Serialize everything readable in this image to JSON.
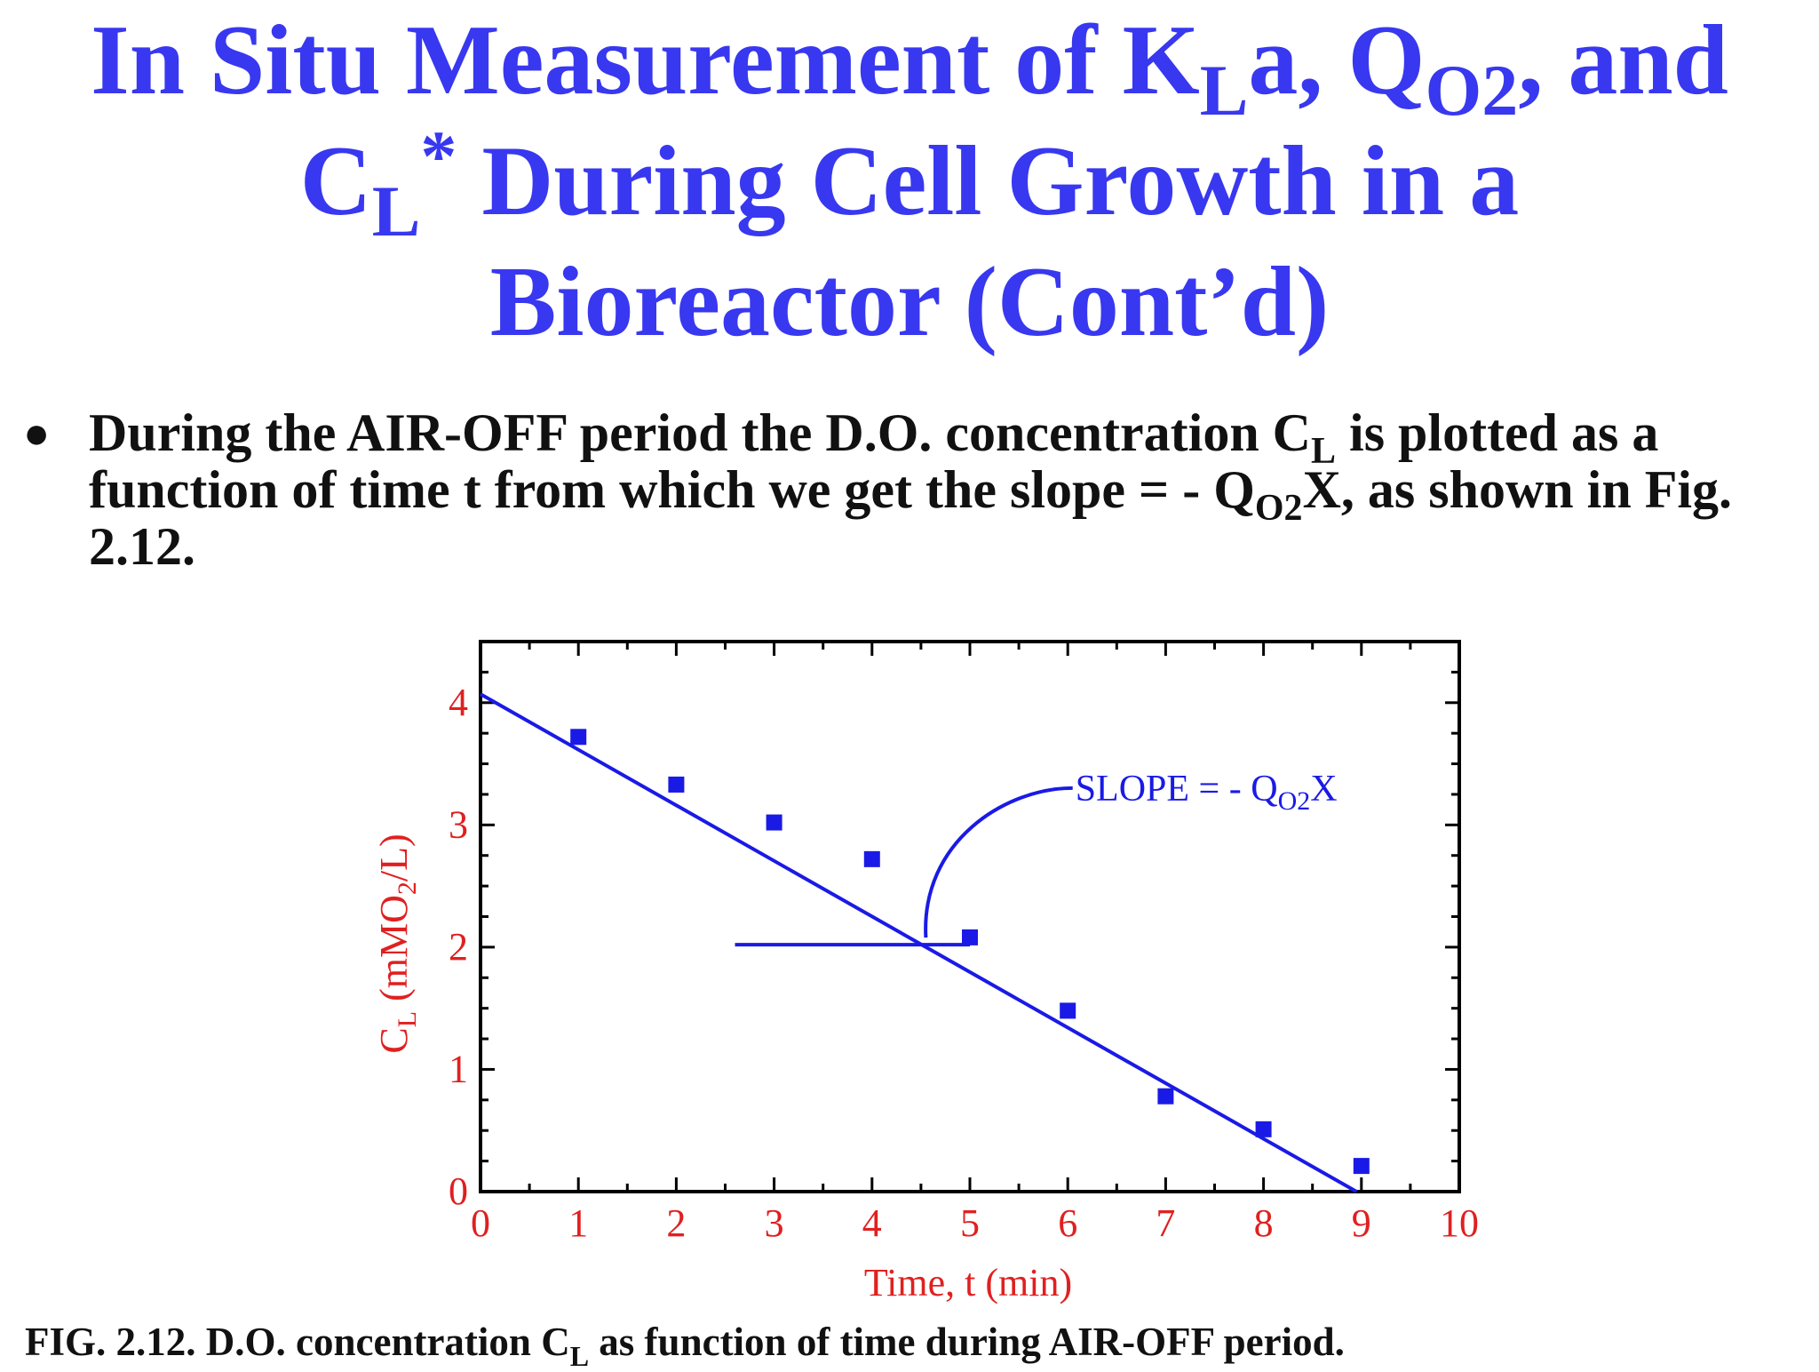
{
  "title": {
    "line1_a": "In Situ Measurement of K",
    "line1_sub1": "L",
    "line1_b": "a, Q",
    "line1_sub2": "O2",
    "line1_c": ", and",
    "line2_a": "C",
    "line2_sub": "L",
    "line2_sup": "*",
    "line2_b": " During Cell Growth in a",
    "line3": "Bioreactor (Cont’d)"
  },
  "bullet": {
    "dot": "●",
    "part1": "During the AIR-OFF period the D.O. concentration C",
    "sub1": "L",
    "part2": " is plotted as a function of time t from which we get the slope = - Q",
    "sub2": "O2",
    "part3": "X, as shown in Fig. 2.12."
  },
  "caption": {
    "part1": "FIG. 2.12. D.O. concentration C",
    "sub": "L",
    "part2": " as function of time during AIR-OFF period."
  },
  "colors": {
    "title": "#3838f0",
    "data": "#1a1ae6",
    "axis_text": "#e02020",
    "frame": "#000000",
    "body_text": "#111111"
  },
  "chart_data": {
    "type": "scatter",
    "title": "",
    "xlabel": "Time, t (min)",
    "ylabel_main": "C",
    "ylabel_sub": "L",
    "ylabel_rest_a": " (mMO",
    "ylabel_rest_sub": "2",
    "ylabel_rest_b": "/L)",
    "xlim": [
      0,
      10
    ],
    "ylim": [
      0,
      4.5
    ],
    "x_ticks": [
      "0",
      "1",
      "2",
      "3",
      "4",
      "5",
      "6",
      "7",
      "8",
      "9",
      "10"
    ],
    "y_ticks": [
      "0",
      "1",
      "2",
      "3",
      "4"
    ],
    "grid": false,
    "series": [
      {
        "points": [
          {
            "x": 1,
            "y": 3.72
          },
          {
            "x": 2,
            "y": 3.33
          },
          {
            "x": 3,
            "y": 3.02
          },
          {
            "x": 4,
            "y": 2.72
          },
          {
            "x": 5,
            "y": 2.08
          },
          {
            "x": 6,
            "y": 1.48
          },
          {
            "x": 7,
            "y": 0.78
          },
          {
            "x": 8,
            "y": 0.51
          },
          {
            "x": 9,
            "y": 0.21
          }
        ]
      }
    ],
    "fit_line": {
      "x": [
        0,
        8.95
      ],
      "y": [
        4.07,
        0
      ]
    },
    "annotation": {
      "text_a": "SLOPE = - Q",
      "text_sub": "O2",
      "text_b": "X",
      "horizontal_segment": {
        "x": [
          2.6,
          5.0
        ],
        "y": 2.02
      }
    }
  }
}
